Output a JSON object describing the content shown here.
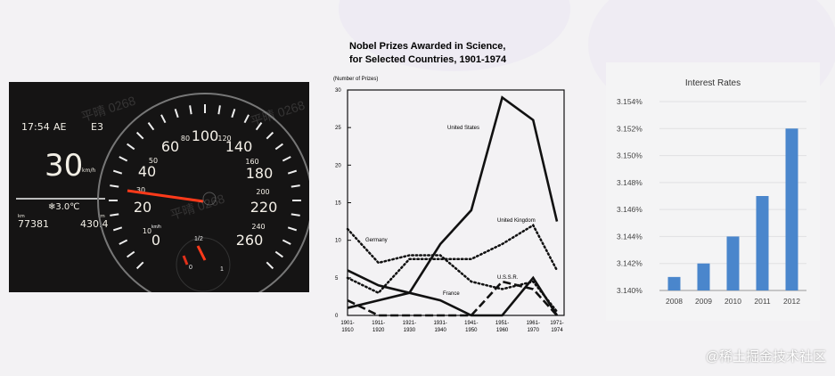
{
  "dashboard": {
    "time": "17:54",
    "mode": "AE",
    "gear": "E3",
    "speed": "30",
    "speed_unit": "km/h",
    "temperature": "❄3.0℃",
    "odometer_unit": "km",
    "odometer": "77381",
    "range_unit": "km",
    "range": "430.4",
    "speed_labels": [
      "0",
      "10",
      "20",
      "30",
      "40",
      "50",
      "60",
      "80",
      "100",
      "120",
      "140",
      "160",
      "180",
      "200",
      "220",
      "240",
      "260"
    ],
    "speed_scale_unit": "km/h",
    "fuel_labels": [
      "0",
      "1/2",
      "1"
    ]
  },
  "watermark": "平晴 0268",
  "footer": "@稀土掘金技术社区",
  "chart_data": [
    {
      "type": "line",
      "title": "Nobel Prizes Awarded in Science,",
      "subtitle": "for Selected Countries, 1901-1974",
      "ylabel": "(Number of Prizes)",
      "ylim": [
        0,
        30
      ],
      "yticks": [
        "0",
        "5",
        "10",
        "15",
        "20",
        "25",
        "30"
      ],
      "categories": [
        [
          "1901-",
          "1910"
        ],
        [
          "1911-",
          "1920"
        ],
        [
          "1921-",
          "1930"
        ],
        [
          "1931-",
          "1940"
        ],
        [
          "1941-",
          "1950"
        ],
        [
          "1951-",
          "1960"
        ],
        [
          "1961-",
          "1970"
        ],
        [
          "1971-",
          "1974"
        ]
      ],
      "series": [
        {
          "name": "United States",
          "style": "solid",
          "values": [
            1,
            2,
            3,
            9.5,
            14,
            29,
            26,
            12.5
          ]
        },
        {
          "name": "France",
          "style": "solid",
          "values": [
            6,
            4,
            3,
            2,
            0,
            0,
            5,
            0
          ]
        },
        {
          "name": "Germany",
          "style": "dotted",
          "values": [
            11.5,
            7,
            8,
            8,
            4.5,
            3.5,
            4.5,
            0.5
          ]
        },
        {
          "name": "United Kingdom",
          "style": "dotted",
          "values": [
            5,
            3,
            7.5,
            7.5,
            7.5,
            9.5,
            12,
            6
          ]
        },
        {
          "name": "U.S.S.R.",
          "style": "dashed",
          "values": [
            2,
            0,
            0,
            0,
            0,
            4.5,
            3.5,
            0
          ]
        }
      ]
    },
    {
      "type": "bar",
      "title": "Interest Rates",
      "categories": [
        "2008",
        "2009",
        "2010",
        "2011",
        "2012"
      ],
      "values": [
        3.141,
        3.142,
        3.144,
        3.147,
        3.152
      ],
      "ylim": [
        3.14,
        3.154
      ],
      "yticks": [
        "3.140%",
        "3.142%",
        "3.144%",
        "3.146%",
        "3.148%",
        "3.150%",
        "3.152%",
        "3.154%"
      ],
      "bar_color": "#4a86cc",
      "grid": true
    }
  ]
}
